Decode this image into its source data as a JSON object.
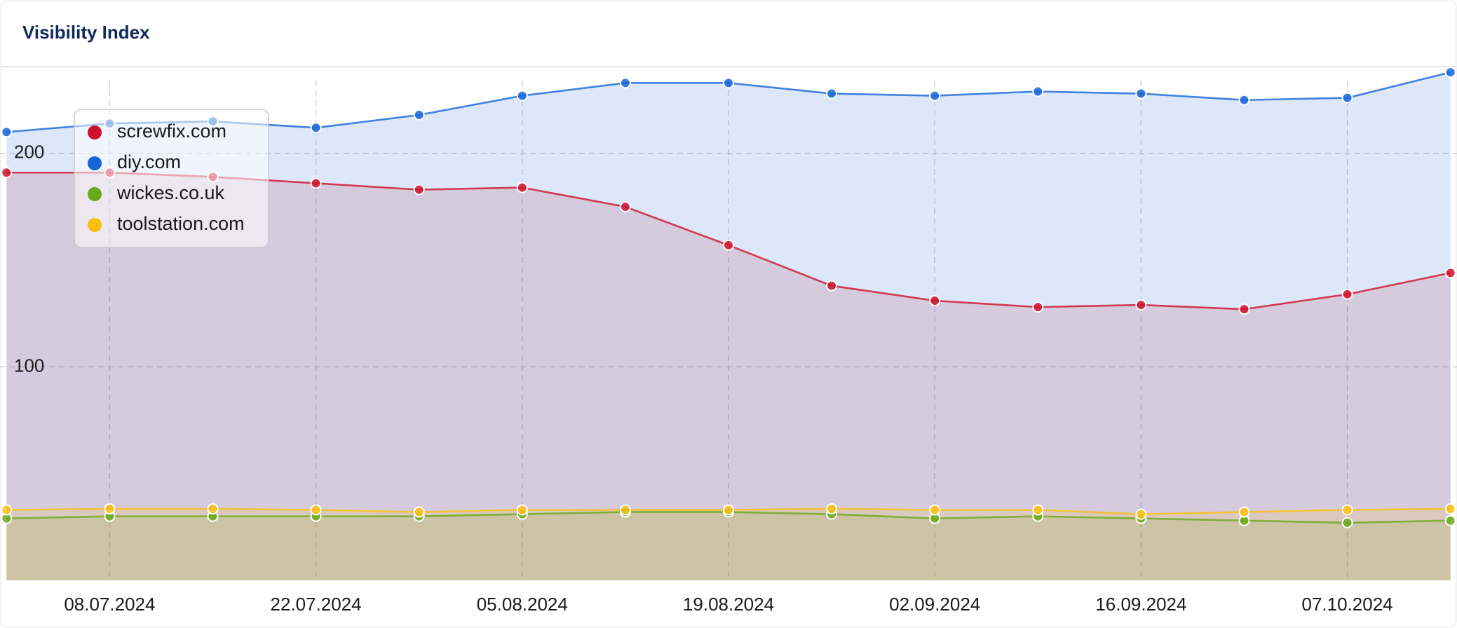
{
  "chart_data": {
    "type": "area",
    "title": "Visibility Index",
    "categories": [
      null,
      "08.07.2024",
      null,
      "22.07.2024",
      null,
      "05.08.2024",
      null,
      "19.08.2024",
      null,
      "02.09.2024",
      null,
      "16.09.2024",
      null,
      "07.10.2024",
      null
    ],
    "series": [
      {
        "name": "screwfix.com",
        "color": "#d0112b",
        "values": [
          191,
          191,
          189,
          186,
          183,
          184,
          175,
          157,
          138,
          131,
          128,
          129,
          127,
          134,
          144
        ]
      },
      {
        "name": "diy.com",
        "color": "#1565d8",
        "values": [
          210,
          214,
          215,
          212,
          218,
          227,
          233,
          233,
          228,
          227,
          229,
          228,
          225,
          226,
          238
        ]
      },
      {
        "name": "wickes.co.uk",
        "color": "#6aaa1a",
        "values": [
          29,
          30,
          30,
          30,
          30,
          31,
          32,
          32,
          31,
          29,
          30,
          29,
          28,
          27,
          28
        ]
      },
      {
        "name": "toolstation.com",
        "color": "#fbbf10",
        "values": [
          33,
          33.5,
          33.5,
          33,
          32,
          33,
          33,
          33,
          33.5,
          33,
          33,
          31,
          32,
          33,
          33.5
        ]
      }
    ],
    "ylim": [
      0,
      240
    ],
    "yticks": [
      100,
      200
    ],
    "grid": true,
    "legend": "top-left"
  }
}
